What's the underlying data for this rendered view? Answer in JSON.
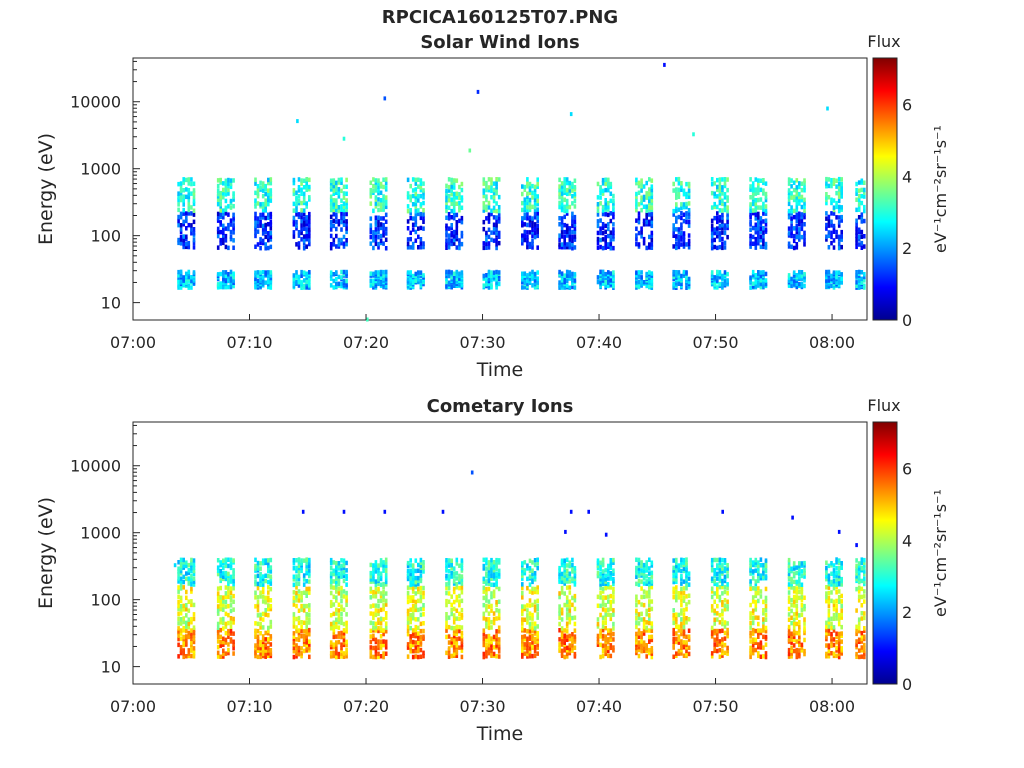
{
  "figure_title": "RPCICA160125T07.PNG",
  "colormap": [
    "#00008f",
    "#0000ff",
    "#0080ff",
    "#00ffff",
    "#80ff80",
    "#ffff00",
    "#ff8000",
    "#ff0000",
    "#800000"
  ],
  "chart_data": [
    {
      "type": "heatmap",
      "title": "Solar Wind Ions",
      "xlabel": "Time",
      "ylabel": "Energy (eV)",
      "x_ticks": [
        "07:00",
        "07:10",
        "07:20",
        "07:30",
        "07:40",
        "07:50",
        "08:00"
      ],
      "y_ticks": [
        "10",
        "100",
        "1000",
        "10000"
      ],
      "xlim_minutes": [
        0,
        63
      ],
      "ylim_eV": [
        5.5,
        45000
      ],
      "y_scale": "log",
      "colorbar": {
        "label": "eV⁻¹cm⁻²sr⁻¹s⁻¹",
        "title": "Flux",
        "ticks": [
          "0",
          "2",
          "4",
          "6"
        ],
        "range": [
          0,
          7.3
        ]
      },
      "sweeps_start_minute": [
        3.8,
        7.2,
        10.4,
        13.7,
        16.9,
        20.3,
        23.5,
        26.8,
        30.0,
        33.3,
        36.5,
        39.8,
        43.1,
        46.3,
        49.6,
        52.9,
        56.2,
        59.4,
        62.0
      ],
      "sweep_bands": [
        {
          "e_low": 18,
          "e_high": 32,
          "flux": 2.3
        },
        {
          "e_low": 70,
          "e_high": 250,
          "flux": 1.2
        },
        {
          "e_low": 250,
          "e_high": 800,
          "flux": 3.0
        }
      ],
      "scattered_points": [
        {
          "t": 14.0,
          "e": 5500,
          "flux": 2.5
        },
        {
          "t": 21.5,
          "e": 12000,
          "flux": 1.5
        },
        {
          "t": 29.5,
          "e": 15000,
          "flux": 1.2
        },
        {
          "t": 45.5,
          "e": 38000,
          "flux": 1.0
        },
        {
          "t": 59.5,
          "e": 8500,
          "flux": 2.5
        },
        {
          "t": 37.5,
          "e": 7000,
          "flux": 2.5
        },
        {
          "t": 28.8,
          "e": 2000,
          "flux": 3.5
        },
        {
          "t": 18.0,
          "e": 3000,
          "flux": 3.0
        },
        {
          "t": 48.0,
          "e": 3500,
          "flux": 3.0
        },
        {
          "t": 20.0,
          "e": 6,
          "flux": 3.2
        }
      ]
    },
    {
      "type": "heatmap",
      "title": "Cometary Ions",
      "xlabel": "Time",
      "ylabel": "Energy (eV)",
      "x_ticks": [
        "07:00",
        "07:10",
        "07:20",
        "07:30",
        "07:40",
        "07:50",
        "08:00"
      ],
      "y_ticks": [
        "10",
        "100",
        "1000",
        "10000"
      ],
      "xlim_minutes": [
        0,
        63
      ],
      "ylim_eV": [
        5.5,
        45000
      ],
      "y_scale": "log",
      "colorbar": {
        "label": "eV⁻¹cm⁻²sr⁻¹s⁻¹",
        "title": "Flux",
        "ticks": [
          "0",
          "2",
          "4",
          "6"
        ],
        "range": [
          0,
          7.3
        ]
      },
      "sweeps_start_minute": [
        3.8,
        7.2,
        10.4,
        13.7,
        16.9,
        20.3,
        23.5,
        26.8,
        30.0,
        33.3,
        36.5,
        39.8,
        43.1,
        46.3,
        49.6,
        52.9,
        56.2,
        59.4,
        62.0
      ],
      "sweep_bands": [
        {
          "e_low": 15,
          "e_high": 40,
          "flux": 5.4
        },
        {
          "e_low": 40,
          "e_high": 180,
          "flux": 4.3
        },
        {
          "e_low": 180,
          "e_high": 450,
          "flux": 2.9
        }
      ],
      "scattered_points": [
        {
          "t": 29.0,
          "e": 8500,
          "flux": 1.5
        },
        {
          "t": 14.5,
          "e": 2200,
          "flux": 1.0
        },
        {
          "t": 18.0,
          "e": 2200,
          "flux": 1.0
        },
        {
          "t": 21.5,
          "e": 2200,
          "flux": 1.0
        },
        {
          "t": 26.5,
          "e": 2200,
          "flux": 1.0
        },
        {
          "t": 37.5,
          "e": 2200,
          "flux": 1.0
        },
        {
          "t": 39.0,
          "e": 2200,
          "flux": 1.0
        },
        {
          "t": 50.5,
          "e": 2200,
          "flux": 1.0
        },
        {
          "t": 56.5,
          "e": 1800,
          "flux": 1.0
        },
        {
          "t": 60.5,
          "e": 1100,
          "flux": 1.0
        },
        {
          "t": 37.0,
          "e": 1100,
          "flux": 1.0
        },
        {
          "t": 40.5,
          "e": 1000,
          "flux": 1.0
        },
        {
          "t": 62.0,
          "e": 700,
          "flux": 1.0
        },
        {
          "t": 3.5,
          "e": 350,
          "flux": 2.5
        }
      ]
    }
  ]
}
